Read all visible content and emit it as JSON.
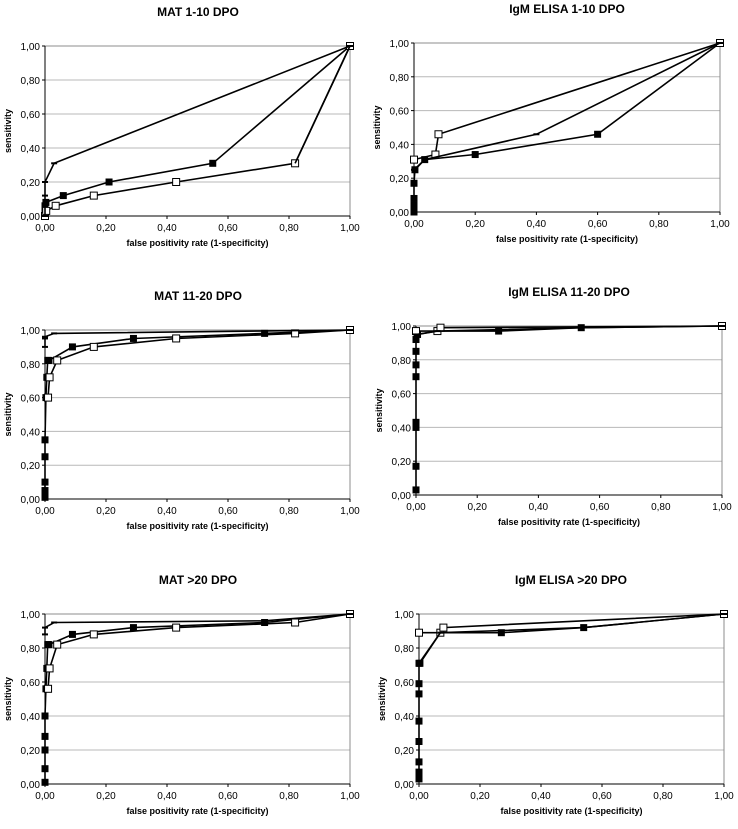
{
  "figure": {
    "common": {
      "xlabel": "false positivity rate (1-specificity)",
      "ylabel": "sensitivity",
      "xticks": [
        "0,00",
        "0,20",
        "0,40",
        "0,60",
        "0,80",
        "1,00"
      ],
      "yticks": [
        "0,00",
        "0,20",
        "0,40",
        "0,60",
        "0,80",
        "1,00"
      ]
    }
  },
  "chart_data": [
    {
      "type": "line",
      "title": "MAT 1-10 DPO",
      "xlabel": "false positivity rate (1-specificity)",
      "ylabel": "sensitivity",
      "xlim": [
        0,
        1
      ],
      "ylim": [
        0,
        1
      ],
      "grid": "horizontal",
      "series": [
        {
          "marker": "filled-square",
          "x": [
            0,
            0,
            0,
            0,
            0.003,
            0.06,
            0.21,
            0.55,
            1.0
          ],
          "y": [
            0,
            0.02,
            0.04,
            0.06,
            0.08,
            0.12,
            0.2,
            0.31,
            1.0
          ]
        },
        {
          "marker": "open-square",
          "x": [
            0,
            0.004,
            0.035,
            0.16,
            0.43,
            0.82,
            1.0
          ],
          "y": [
            0,
            0.03,
            0.06,
            0.12,
            0.2,
            0.31,
            1.0
          ]
        },
        {
          "marker": "dash",
          "x": [
            0,
            0,
            0,
            0.03,
            1.0
          ],
          "y": [
            0,
            0.12,
            0.2,
            0.31,
            1.0
          ]
        },
        {
          "marker": "none",
          "x": [
            0.82,
            1.0
          ],
          "y": [
            0.31,
            1.0
          ]
        }
      ]
    },
    {
      "type": "line",
      "title": "IgM ELISA 1-10 DPO",
      "xlabel": "false positivity rate (1-specificity)",
      "ylabel": "sensitivity",
      "xlim": [
        0,
        1
      ],
      "ylim": [
        0,
        1
      ],
      "grid": "horizontal",
      "series": [
        {
          "marker": "filled-square",
          "x": [
            0,
            0,
            0,
            0,
            0,
            0.003,
            0.035,
            0.2,
            0.6,
            1.0
          ],
          "y": [
            0,
            0.02,
            0.04,
            0.08,
            0.17,
            0.25,
            0.31,
            0.34,
            0.46,
            1.0
          ]
        },
        {
          "marker": "open-square",
          "x": [
            0,
            0.07,
            0.08,
            1.0
          ],
          "y": [
            0.31,
            0.34,
            0.46,
            1.0
          ]
        },
        {
          "marker": "dash",
          "x": [
            0,
            0.035,
            0.4,
            1.0
          ],
          "y": [
            0.25,
            0.31,
            0.46,
            1.0
          ]
        }
      ]
    },
    {
      "type": "line",
      "title": "MAT 11-20 DPO",
      "xlabel": "false positivity rate (1-specificity)",
      "ylabel": "sensitivity",
      "xlim": [
        0,
        1
      ],
      "ylim": [
        0,
        1
      ],
      "grid": "horizontal",
      "series": [
        {
          "marker": "filled-square",
          "x": [
            0,
            0,
            0,
            0,
            0,
            0.003,
            0.006,
            0.009,
            0.013,
            0.09,
            0.29,
            0.72,
            1.0
          ],
          "y": [
            0.01,
            0.05,
            0.1,
            0.25,
            0.35,
            0.6,
            0.72,
            0.82,
            0.82,
            0.9,
            0.95,
            0.98,
            1.0
          ]
        },
        {
          "marker": "open-square",
          "x": [
            0.01,
            0.015,
            0.04,
            0.16,
            0.43,
            0.82,
            1.0
          ],
          "y": [
            0.6,
            0.72,
            0.82,
            0.9,
            0.95,
            0.98,
            1.0
          ]
        },
        {
          "marker": "dash",
          "x": [
            0,
            0,
            0,
            0.03,
            1.0
          ],
          "y": [
            0.9,
            0.95,
            0.96,
            0.98,
            1.0
          ]
        }
      ]
    },
    {
      "type": "line",
      "title": "IgM ELISA 11-20 DPO",
      "xlabel": "false positivity rate (1-specificity)",
      "ylabel": "sensitivity",
      "xlim": [
        0,
        1
      ],
      "ylim": [
        0,
        1
      ],
      "grid": "horizontal",
      "series": [
        {
          "marker": "filled-square",
          "x": [
            0,
            0,
            0,
            0,
            0,
            0,
            0,
            0,
            0.005,
            0.07,
            0.27,
            0.54,
            1.0
          ],
          "y": [
            0.03,
            0.17,
            0.4,
            0.43,
            0.7,
            0.77,
            0.85,
            0.92,
            0.95,
            0.97,
            0.97,
            0.99,
            1.0
          ]
        },
        {
          "marker": "open-square",
          "x": [
            0,
            0.07,
            0.08,
            1.0
          ],
          "y": [
            0.97,
            0.97,
            0.99,
            1.0
          ]
        },
        {
          "marker": "dash",
          "x": [
            0,
            0.07,
            0.54,
            1.0
          ],
          "y": [
            0.95,
            0.97,
            0.99,
            1.0
          ]
        }
      ]
    },
    {
      "type": "line",
      "title": "MAT >20 DPO",
      "xlabel": "false positivity rate (1-specificity)",
      "ylabel": "sensitivity",
      "xlim": [
        0,
        1
      ],
      "ylim": [
        0,
        1
      ],
      "grid": "horizontal",
      "series": [
        {
          "marker": "filled-square",
          "x": [
            0,
            0,
            0,
            0,
            0,
            0.003,
            0.006,
            0.009,
            0.013,
            0.09,
            0.29,
            0.72,
            1.0
          ],
          "y": [
            0.01,
            0.09,
            0.2,
            0.28,
            0.4,
            0.56,
            0.68,
            0.82,
            0.82,
            0.88,
            0.92,
            0.95,
            1.0
          ]
        },
        {
          "marker": "open-square",
          "x": [
            0.01,
            0.015,
            0.04,
            0.16,
            0.43,
            0.82,
            1.0
          ],
          "y": [
            0.56,
            0.68,
            0.82,
            0.88,
            0.92,
            0.95,
            1.0
          ]
        },
        {
          "marker": "dash",
          "x": [
            0,
            0,
            0.03,
            0.72,
            1.0
          ],
          "y": [
            0.88,
            0.92,
            0.95,
            0.96,
            1.0
          ]
        }
      ]
    },
    {
      "type": "line",
      "title": "IgM ELISA >20 DPO",
      "xlabel": "false positivity rate (1-specificity)",
      "ylabel": "sensitivity",
      "xlim": [
        0,
        1
      ],
      "ylim": [
        0,
        1
      ],
      "grid": "horizontal",
      "series": [
        {
          "marker": "filled-square",
          "x": [
            0,
            0,
            0,
            0,
            0,
            0,
            0,
            0,
            0.003,
            0.07,
            0.27,
            0.54,
            1.0
          ],
          "y": [
            0.03,
            0.07,
            0.13,
            0.25,
            0.37,
            0.53,
            0.59,
            0.71,
            0.71,
            0.89,
            0.89,
            0.92,
            1.0
          ]
        },
        {
          "marker": "open-square",
          "x": [
            0,
            0.07,
            0.08,
            1.0
          ],
          "y": [
            0.89,
            0.89,
            0.92,
            1.0
          ]
        },
        {
          "marker": "dash",
          "x": [
            0,
            0.07,
            0.54,
            1.0
          ],
          "y": [
            0.71,
            0.89,
            0.92,
            1.0
          ]
        }
      ]
    }
  ]
}
